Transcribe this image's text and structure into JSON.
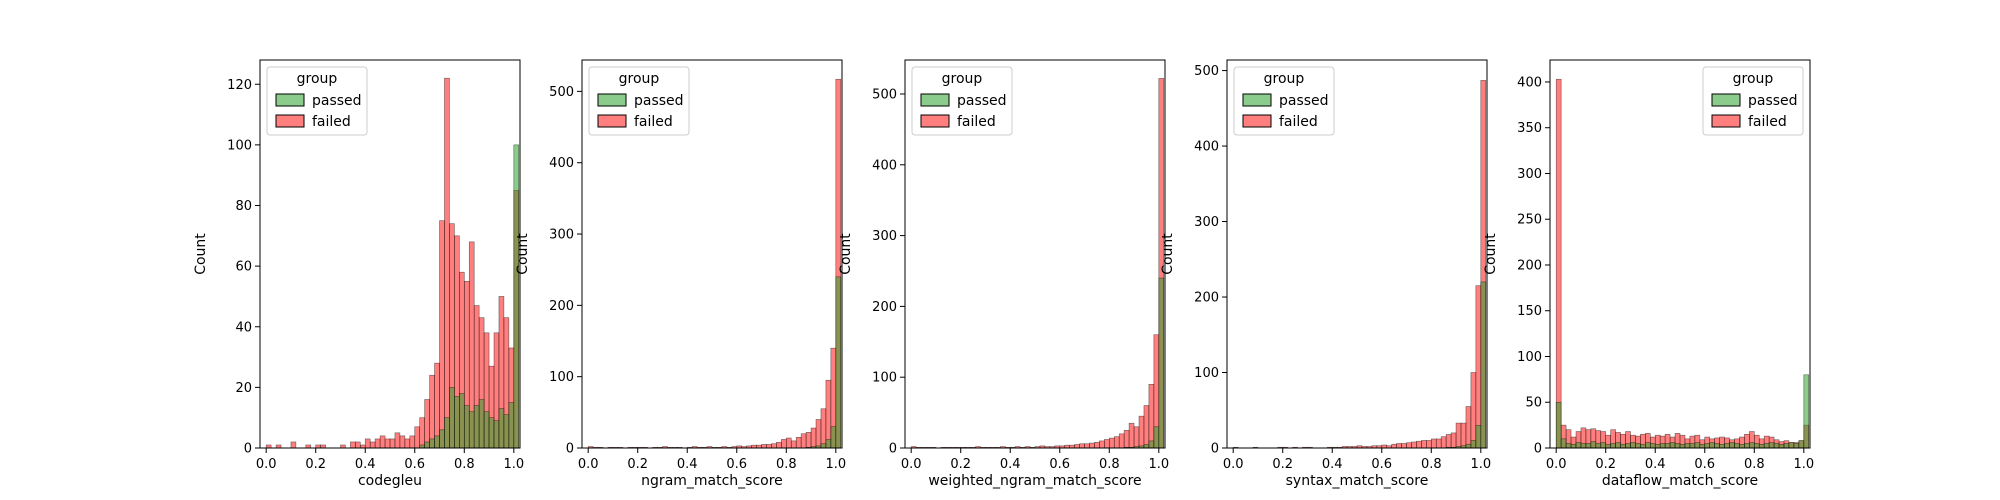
{
  "chart_data": [
    {
      "type": "bar",
      "xlabel": "codegleu",
      "ylabel": "Count",
      "xlim": [
        -0.025,
        1.025
      ],
      "ylim": [
        0,
        128
      ],
      "xticks": [
        "0.0",
        "0.2",
        "0.4",
        "0.6",
        "0.8",
        "1.0"
      ],
      "yticks": [
        "0",
        "20",
        "40",
        "60",
        "80",
        "100",
        "120"
      ],
      "legend": {
        "title": "group",
        "entries": [
          "passed",
          "failed"
        ],
        "placement": "top-left"
      },
      "bin_start": 0.0,
      "bin_width": 0.02,
      "series": [
        {
          "name": "passed",
          "color": "#2ca02c",
          "values": [
            0,
            0,
            0,
            0,
            0,
            0,
            0,
            0,
            0,
            0,
            0,
            0,
            0,
            0,
            0,
            0,
            0,
            0,
            0,
            0,
            0,
            0,
            0,
            0,
            0,
            0,
            0,
            0,
            0,
            0,
            0,
            1,
            2,
            3,
            4,
            6,
            10,
            20,
            17,
            18,
            14,
            12,
            14,
            16,
            12,
            10,
            9,
            13,
            11,
            15,
            100
          ]
        },
        {
          "name": "failed",
          "color": "#ff0000",
          "values": [
            1,
            0,
            1,
            0,
            0,
            2,
            0,
            0,
            1,
            0,
            1,
            1,
            0,
            0,
            0,
            1,
            0,
            2,
            2,
            1,
            3,
            2,
            3,
            4,
            3,
            3,
            5,
            4,
            3,
            4,
            7,
            10,
            16,
            24,
            28,
            75,
            122,
            74,
            70,
            58,
            55,
            68,
            47,
            43,
            38,
            27,
            38,
            50,
            43,
            33,
            85
          ]
        }
      ]
    },
    {
      "type": "bar",
      "xlabel": "ngram_match_score",
      "ylabel": "Count",
      "xlim": [
        -0.025,
        1.025
      ],
      "ylim": [
        0,
        544
      ],
      "xticks": [
        "0.0",
        "0.2",
        "0.4",
        "0.6",
        "0.8",
        "1.0"
      ],
      "yticks": [
        "0",
        "100",
        "200",
        "300",
        "400",
        "500"
      ],
      "legend": {
        "title": "group",
        "entries": [
          "passed",
          "failed"
        ],
        "placement": "top-left"
      },
      "bin_start": 0.0,
      "bin_width": 0.02,
      "series": [
        {
          "name": "passed",
          "color": "#2ca02c",
          "values": [
            0,
            0,
            0,
            0,
            0,
            0,
            0,
            0,
            0,
            0,
            0,
            0,
            0,
            0,
            0,
            0,
            0,
            0,
            0,
            0,
            0,
            0,
            0,
            0,
            0,
            0,
            0,
            0,
            0,
            0,
            0,
            0,
            0,
            0,
            0,
            0,
            0,
            0,
            0,
            0,
            0,
            0,
            0,
            0,
            1,
            2,
            3,
            6,
            12,
            30,
            240
          ]
        },
        {
          "name": "failed",
          "color": "#ff0000",
          "values": [
            2,
            1,
            1,
            0,
            1,
            1,
            1,
            0,
            1,
            1,
            1,
            1,
            0,
            1,
            1,
            2,
            1,
            1,
            1,
            0,
            1,
            2,
            1,
            1,
            2,
            1,
            1,
            2,
            1,
            2,
            3,
            2,
            3,
            4,
            4,
            5,
            5,
            6,
            8,
            12,
            14,
            10,
            15,
            20,
            22,
            28,
            40,
            55,
            95,
            140,
            517
          ]
        }
      ]
    },
    {
      "type": "bar",
      "xlabel": "weighted_ngram_match_score",
      "ylabel": "Count",
      "xlim": [
        -0.025,
        1.025
      ],
      "ylim": [
        0,
        548
      ],
      "xticks": [
        "0.0",
        "0.2",
        "0.4",
        "0.6",
        "0.8",
        "1.0"
      ],
      "yticks": [
        "0",
        "100",
        "200",
        "300",
        "400",
        "500"
      ],
      "legend": {
        "title": "group",
        "entries": [
          "passed",
          "failed"
        ],
        "placement": "top-left"
      },
      "bin_start": 0.0,
      "bin_width": 0.02,
      "series": [
        {
          "name": "passed",
          "color": "#2ca02c",
          "values": [
            0,
            0,
            0,
            0,
            0,
            0,
            0,
            0,
            0,
            0,
            0,
            0,
            0,
            0,
            0,
            0,
            0,
            0,
            0,
            0,
            0,
            0,
            0,
            0,
            0,
            0,
            0,
            0,
            0,
            0,
            0,
            0,
            0,
            0,
            0,
            0,
            0,
            0,
            0,
            0,
            0,
            0,
            0,
            1,
            1,
            2,
            3,
            5,
            10,
            30,
            240
          ]
        },
        {
          "name": "failed",
          "color": "#ff0000",
          "values": [
            2,
            1,
            1,
            1,
            1,
            0,
            1,
            1,
            1,
            1,
            1,
            1,
            1,
            2,
            1,
            1,
            1,
            1,
            2,
            1,
            1,
            2,
            1,
            2,
            1,
            2,
            3,
            2,
            2,
            3,
            3,
            4,
            4,
            5,
            6,
            6,
            7,
            8,
            10,
            12,
            14,
            16,
            20,
            25,
            35,
            30,
            45,
            60,
            90,
            160,
            522
          ]
        }
      ]
    },
    {
      "type": "bar",
      "xlabel": "syntax_match_score",
      "ylabel": "Count",
      "xlim": [
        -0.025,
        1.025
      ],
      "ylim": [
        0,
        514
      ],
      "xticks": [
        "0.0",
        "0.2",
        "0.4",
        "0.6",
        "0.8",
        "1.0"
      ],
      "yticks": [
        "0",
        "100",
        "200",
        "300",
        "400",
        "500"
      ],
      "legend": {
        "title": "group",
        "entries": [
          "passed",
          "failed"
        ],
        "placement": "top-left"
      },
      "bin_start": 0.0,
      "bin_width": 0.02,
      "series": [
        {
          "name": "passed",
          "color": "#2ca02c",
          "values": [
            0,
            0,
            0,
            0,
            0,
            0,
            0,
            0,
            0,
            0,
            0,
            0,
            0,
            0,
            0,
            0,
            0,
            0,
            0,
            0,
            0,
            0,
            0,
            0,
            0,
            0,
            0,
            0,
            0,
            0,
            0,
            0,
            0,
            0,
            0,
            0,
            0,
            0,
            0,
            0,
            0,
            0,
            0,
            1,
            1,
            2,
            3,
            5,
            10,
            30,
            220
          ]
        },
        {
          "name": "failed",
          "color": "#ff0000",
          "values": [
            1,
            0,
            0,
            0,
            1,
            0,
            0,
            0,
            0,
            1,
            1,
            0,
            1,
            0,
            1,
            1,
            0,
            0,
            0,
            1,
            1,
            1,
            2,
            2,
            2,
            3,
            2,
            2,
            3,
            3,
            4,
            3,
            5,
            6,
            6,
            7,
            8,
            9,
            10,
            10,
            12,
            12,
            15,
            18,
            20,
            33,
            33,
            55,
            100,
            215,
            487
          ]
        }
      ]
    },
    {
      "type": "bar",
      "xlabel": "dataflow_match_score",
      "ylabel": "Count",
      "xlim": [
        -0.025,
        1.025
      ],
      "ylim": [
        0,
        424
      ],
      "xticks": [
        "0.0",
        "0.2",
        "0.4",
        "0.6",
        "0.8",
        "1.0"
      ],
      "yticks": [
        "0",
        "50",
        "100",
        "150",
        "200",
        "250",
        "300",
        "350",
        "400"
      ],
      "legend": {
        "title": "group",
        "entries": [
          "passed",
          "failed"
        ],
        "placement": "top-right"
      },
      "bin_start": 0.0,
      "bin_width": 0.02,
      "series": [
        {
          "name": "passed",
          "color": "#2ca02c",
          "values": [
            50,
            10,
            5,
            4,
            6,
            5,
            5,
            7,
            5,
            6,
            4,
            5,
            6,
            4,
            5,
            6,
            5,
            4,
            6,
            5,
            4,
            5,
            5,
            6,
            5,
            4,
            5,
            5,
            6,
            4,
            5,
            6,
            5,
            4,
            5,
            6,
            5,
            4,
            5,
            6,
            5,
            4,
            5,
            6,
            5,
            4,
            5,
            6,
            5,
            8,
            80
          ]
        },
        {
          "name": "failed",
          "color": "#ff0000",
          "values": [
            403,
            25,
            20,
            12,
            18,
            22,
            20,
            21,
            19,
            18,
            14,
            20,
            17,
            15,
            18,
            14,
            13,
            15,
            16,
            12,
            14,
            13,
            15,
            12,
            16,
            14,
            10,
            13,
            14,
            9,
            12,
            10,
            11,
            12,
            11,
            9,
            10,
            12,
            15,
            18,
            14,
            10,
            13,
            12,
            9,
            7,
            8,
            6,
            6,
            8,
            25
          ]
        }
      ]
    }
  ]
}
